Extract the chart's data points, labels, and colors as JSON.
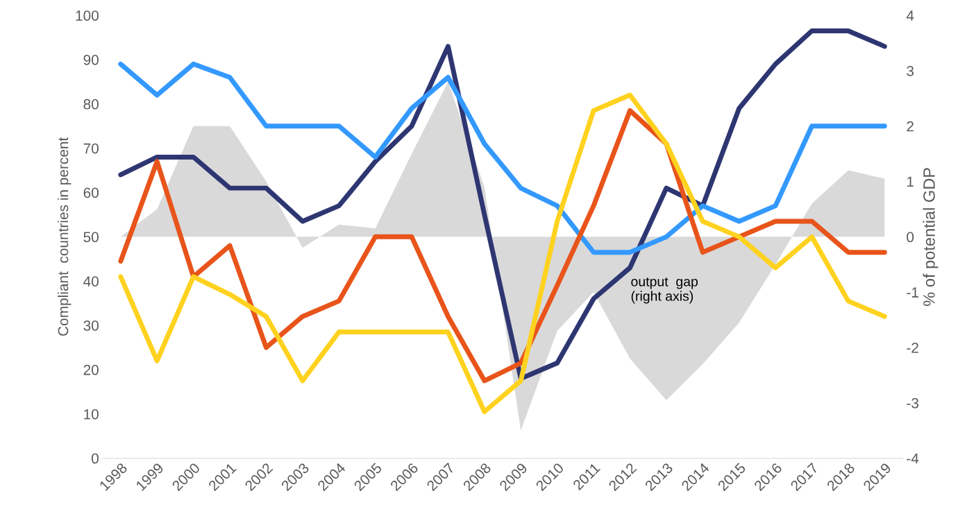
{
  "chart_data": {
    "type": "line",
    "ylabel": "Compliant  countries in percent",
    "y2label": "% of potential GDP",
    "categories": [
      "1998",
      "1999",
      "2000",
      "2001",
      "2002",
      "2003",
      "2004",
      "2005",
      "2006",
      "2007",
      "2008",
      "2009",
      "2010",
      "2011",
      "2012",
      "2013",
      "2014",
      "2015",
      "2016",
      "2017",
      "2018",
      "2019"
    ],
    "series": [
      {
        "type": "area",
        "axis": "y2",
        "color": "#d9d9d9",
        "values": [
          0,
          0.5,
          2.0,
          2.0,
          1.0,
          -0.2,
          0.22,
          0.15,
          1.5,
          2.8,
          0.9,
          -3.5,
          -1.7,
          -1.0,
          -2.2,
          -2.95,
          -2.3,
          -1.55,
          -0.5,
          0.6,
          1.2,
          1.05
        ]
      },
      {
        "color": "#2e3672",
        "values": [
          64,
          68,
          68,
          61,
          61,
          53.5,
          57,
          67,
          75,
          93,
          55,
          18,
          21.5,
          36,
          43,
          61,
          57,
          79,
          89,
          96.5,
          96.5,
          93
        ]
      },
      {
        "color": "#3399ff",
        "values": [
          89,
          82,
          89,
          86,
          75,
          75,
          75,
          68,
          79,
          86,
          71,
          61,
          57,
          46.5,
          46.5,
          50,
          57,
          53.5,
          57,
          75,
          75,
          75
        ]
      },
      {
        "color": "#e8541a",
        "values": [
          44.5,
          67,
          41,
          48,
          25,
          32,
          35.5,
          50,
          50,
          32,
          17.5,
          21.5,
          39,
          57,
          78.5,
          71,
          46.5,
          50,
          53.5,
          53.5,
          46.5,
          46.5
        ]
      },
      {
        "color": "#ffd21f",
        "values": [
          41,
          22,
          41,
          37,
          32,
          17.5,
          28.5,
          28.5,
          28.5,
          28.5,
          10.5,
          17.5,
          53.5,
          78.5,
          82,
          71,
          53.5,
          50,
          43,
          50,
          35.5,
          32
        ]
      }
    ],
    "ylim": [
      0,
      100
    ],
    "yticks": [
      0,
      10,
      20,
      30,
      40,
      50,
      60,
      70,
      80,
      90,
      100
    ],
    "y2lim": [
      -4,
      4
    ],
    "y2ticks": [
      -4,
      -3,
      -2,
      -1,
      0,
      1,
      2,
      3,
      4
    ],
    "annotations": [
      "output  gap\n(right axis)"
    ],
    "grid": false,
    "legend": false,
    "marker": "none",
    "line_style": "solid"
  }
}
